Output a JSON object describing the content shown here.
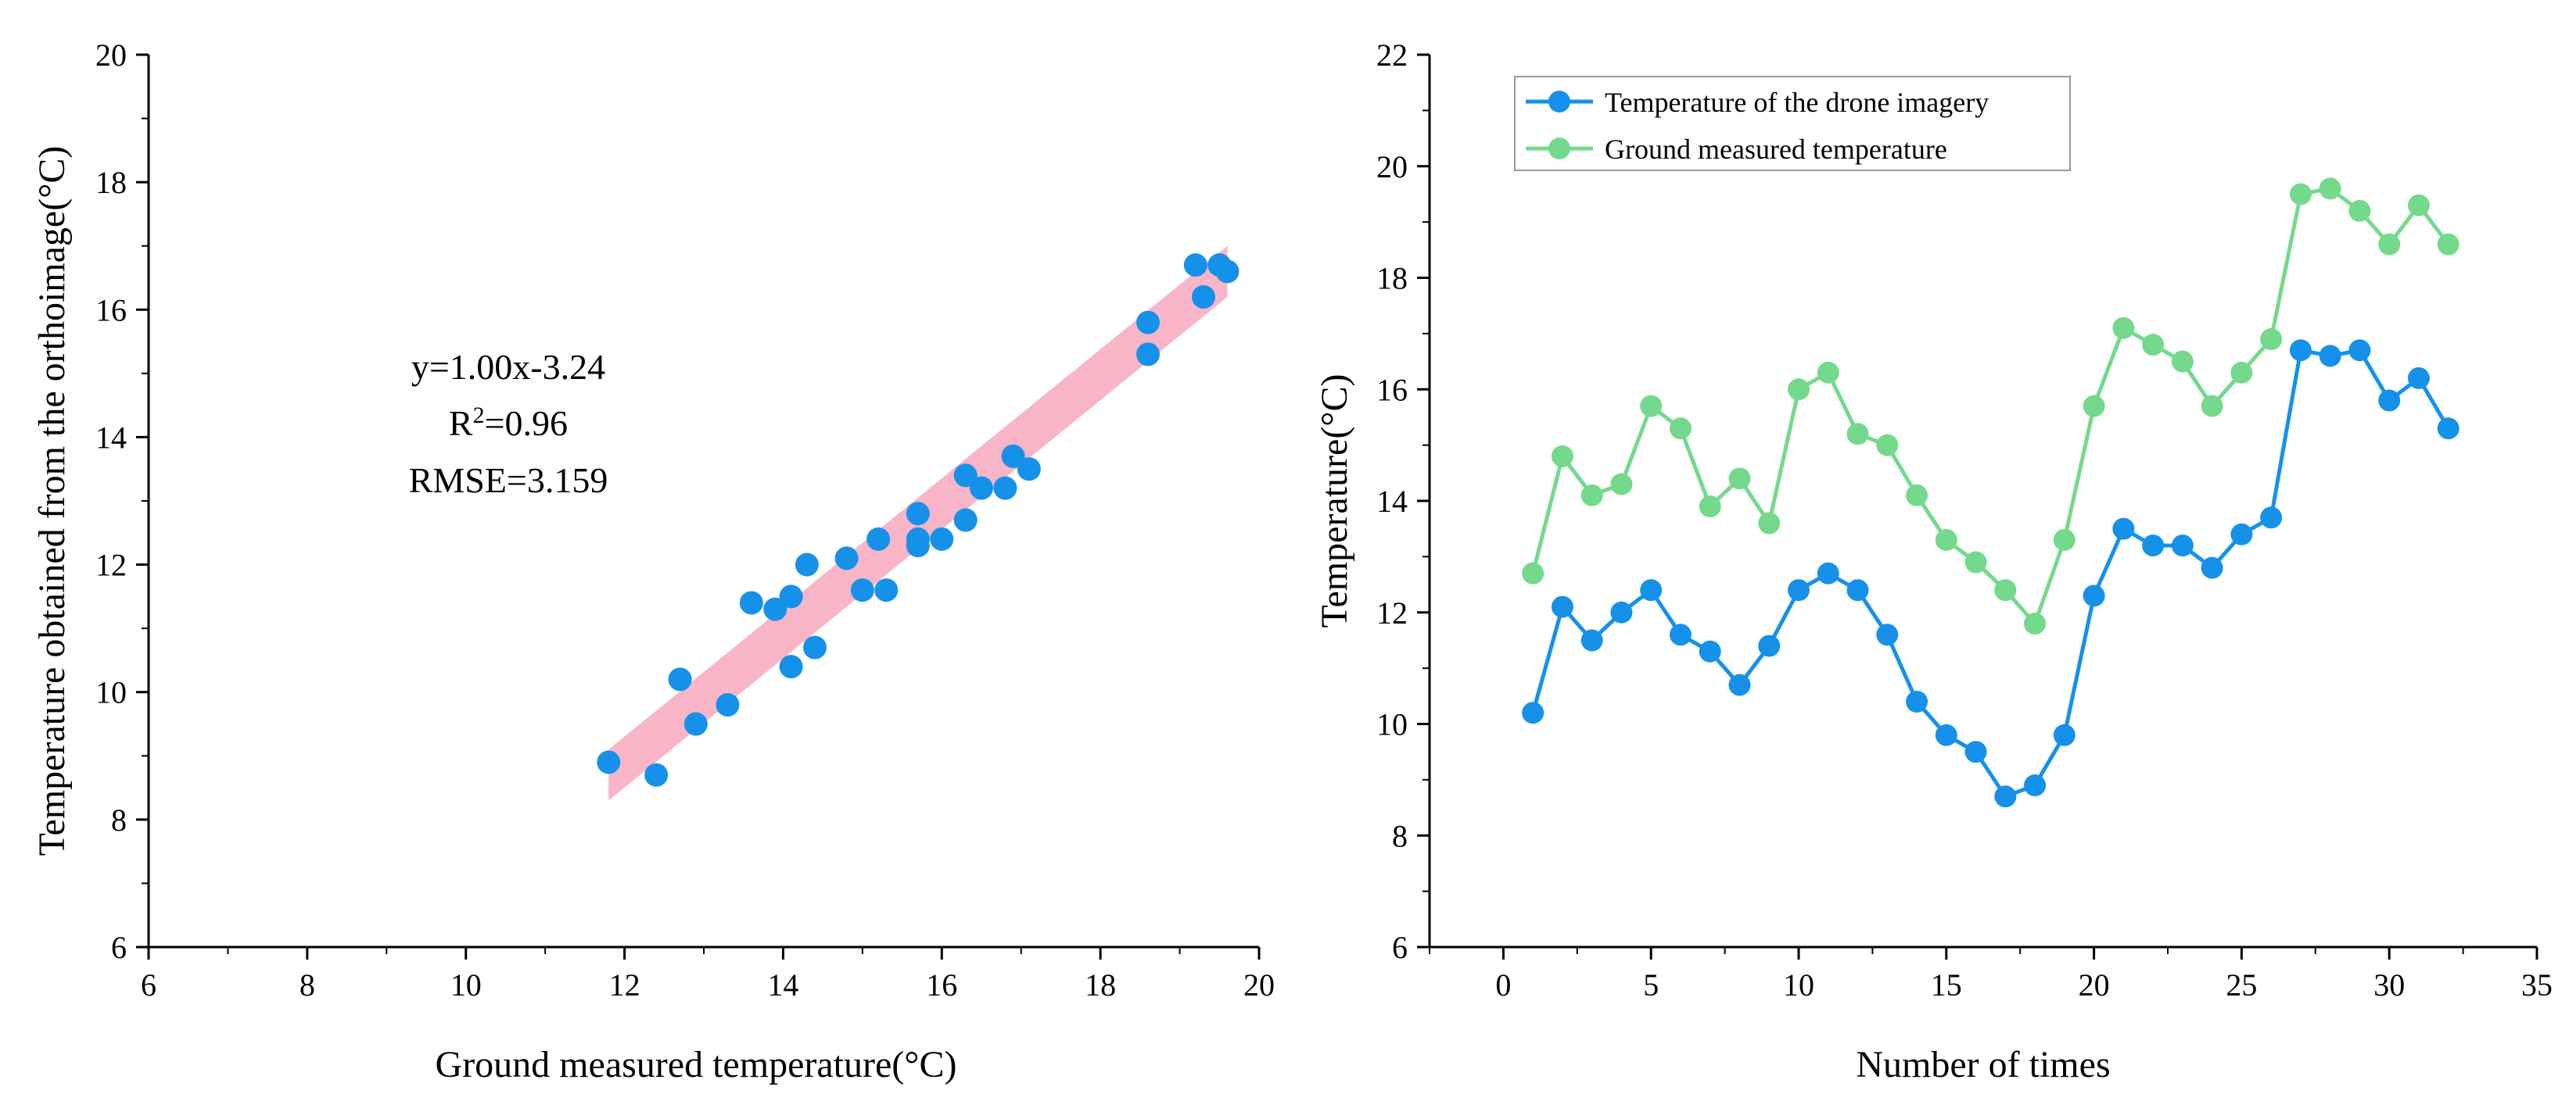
{
  "colors": {
    "drone": "#1591ea",
    "ground": "#74d98c",
    "band": "#f7a8bd",
    "axis": "#000000"
  },
  "chart_data": [
    {
      "type": "scatter",
      "title": "",
      "xlabel": "Ground measured temperature(°C)",
      "ylabel": "Temperature obtained from the orthoimage(°C)",
      "xlim": [
        6,
        20
      ],
      "ylim": [
        6,
        20
      ],
      "xticks": [
        6,
        8,
        10,
        12,
        14,
        16,
        18,
        20
      ],
      "yticks": [
        6,
        8,
        10,
        12,
        14,
        16,
        18,
        20
      ],
      "fit": {
        "slope": 1.0,
        "intercept": -3.24,
        "x_range": [
          11.8,
          19.6
        ],
        "band_from_y": [
          8.3,
          16.2
        ],
        "band_to_y": [
          9.1,
          17.0
        ]
      },
      "annotation": {
        "equation": "y=1.00x-3.24",
        "r2_prefix": "R",
        "r2_sup": "2",
        "r2_value": "=0.96",
        "rmse": "RMSE=3.159"
      },
      "points": [
        {
          "x": 11.8,
          "y": 8.9
        },
        {
          "x": 12.4,
          "y": 8.7
        },
        {
          "x": 12.7,
          "y": 10.2
        },
        {
          "x": 12.9,
          "y": 9.5
        },
        {
          "x": 13.3,
          "y": 9.8
        },
        {
          "x": 13.6,
          "y": 11.4
        },
        {
          "x": 13.9,
          "y": 11.3
        },
        {
          "x": 14.1,
          "y": 11.5
        },
        {
          "x": 14.1,
          "y": 10.4
        },
        {
          "x": 14.3,
          "y": 12.0
        },
        {
          "x": 14.4,
          "y": 10.7
        },
        {
          "x": 14.8,
          "y": 12.1
        },
        {
          "x": 15.0,
          "y": 11.6
        },
        {
          "x": 15.2,
          "y": 12.4
        },
        {
          "x": 15.3,
          "y": 11.6
        },
        {
          "x": 15.7,
          "y": 12.8
        },
        {
          "x": 15.7,
          "y": 12.3
        },
        {
          "x": 15.7,
          "y": 12.4
        },
        {
          "x": 16.0,
          "y": 12.4
        },
        {
          "x": 16.3,
          "y": 12.7
        },
        {
          "x": 16.3,
          "y": 13.4
        },
        {
          "x": 16.5,
          "y": 13.2
        },
        {
          "x": 16.8,
          "y": 13.2
        },
        {
          "x": 16.9,
          "y": 13.7
        },
        {
          "x": 17.1,
          "y": 13.5
        },
        {
          "x": 18.6,
          "y": 15.8
        },
        {
          "x": 18.6,
          "y": 15.3
        },
        {
          "x": 19.2,
          "y": 16.7
        },
        {
          "x": 19.3,
          "y": 16.2
        },
        {
          "x": 19.5,
          "y": 16.7
        },
        {
          "x": 19.6,
          "y": 16.6
        }
      ]
    },
    {
      "type": "line",
      "title": "",
      "xlabel": "Number of times",
      "ylabel": "Temperature(°C)",
      "xlim": [
        -2.5,
        35
      ],
      "ylim": [
        6,
        22
      ],
      "xticks": [
        0,
        5,
        10,
        15,
        20,
        25,
        30,
        35
      ],
      "yticks": [
        6,
        8,
        10,
        12,
        14,
        16,
        18,
        20,
        22
      ],
      "legend_position": "top-left",
      "x": [
        1,
        2,
        3,
        4,
        5,
        6,
        7,
        8,
        9,
        10,
        11,
        12,
        13,
        14,
        15,
        16,
        17,
        18,
        19,
        20,
        21,
        22,
        23,
        24,
        25,
        26,
        27,
        28,
        29,
        30,
        31,
        32
      ],
      "series": [
        {
          "name": "Temperature of the drone imagery",
          "color": "#1591ea",
          "values": [
            10.2,
            12.1,
            11.5,
            12.0,
            12.4,
            11.6,
            11.3,
            10.7,
            11.4,
            12.4,
            12.7,
            12.4,
            11.6,
            10.4,
            9.8,
            9.5,
            8.7,
            8.9,
            9.8,
            12.3,
            13.5,
            13.2,
            13.2,
            12.8,
            13.4,
            13.7,
            16.7,
            16.6,
            16.7,
            15.8,
            16.2,
            15.3
          ]
        },
        {
          "name": "Ground measured temperature",
          "color": "#74d98c",
          "values": [
            12.7,
            14.8,
            14.1,
            14.3,
            15.7,
            15.3,
            13.9,
            14.4,
            13.6,
            16.0,
            16.3,
            15.2,
            15.0,
            14.1,
            13.3,
            12.9,
            12.4,
            11.8,
            13.3,
            15.7,
            17.1,
            16.8,
            16.5,
            15.7,
            16.3,
            16.9,
            19.5,
            19.6,
            19.2,
            18.6,
            19.3,
            18.6
          ]
        }
      ]
    }
  ]
}
